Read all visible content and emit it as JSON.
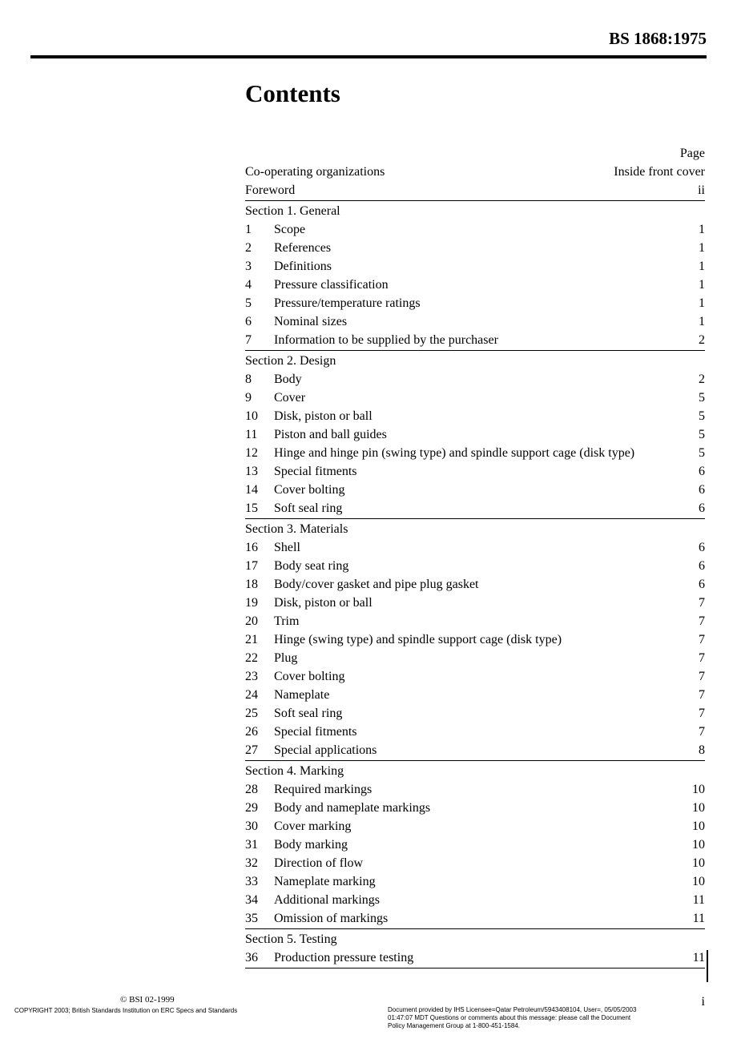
{
  "header": {
    "doc_id": "BS 1868:1975"
  },
  "title": "Contents",
  "page_label": "Page",
  "top_entries": [
    {
      "label": "Co-operating organizations",
      "page": "Inside front cover"
    },
    {
      "label": "Foreword",
      "page": "ii"
    }
  ],
  "sections": [
    {
      "heading": "Section 1. General",
      "items": [
        {
          "num": "1",
          "label": "Scope",
          "page": "1"
        },
        {
          "num": "2",
          "label": "References",
          "page": "1"
        },
        {
          "num": "3",
          "label": "Definitions",
          "page": "1"
        },
        {
          "num": "4",
          "label": "Pressure classification",
          "page": "1"
        },
        {
          "num": "5",
          "label": "Pressure/temperature ratings",
          "page": "1"
        },
        {
          "num": "6",
          "label": "Nominal sizes",
          "page": "1"
        },
        {
          "num": "7",
          "label": "Information to be supplied by the purchaser",
          "page": "2"
        }
      ]
    },
    {
      "heading": "Section 2. Design",
      "items": [
        {
          "num": "8",
          "label": "Body",
          "page": "2"
        },
        {
          "num": "9",
          "label": "Cover",
          "page": "5"
        },
        {
          "num": "10",
          "label": "Disk, piston or ball",
          "page": "5"
        },
        {
          "num": "11",
          "label": "Piston and ball guides",
          "page": "5"
        },
        {
          "num": "12",
          "label": "Hinge and hinge pin (swing type) and spindle support cage (disk type)",
          "page": "5"
        },
        {
          "num": "13",
          "label": "Special fitments",
          "page": "6"
        },
        {
          "num": "14",
          "label": "Cover bolting",
          "page": "6"
        },
        {
          "num": "15",
          "label": "Soft seal ring",
          "page": "6"
        }
      ]
    },
    {
      "heading": "Section 3. Materials",
      "items": [
        {
          "num": "16",
          "label": "Shell",
          "page": "6"
        },
        {
          "num": "17",
          "label": "Body seat ring",
          "page": "6"
        },
        {
          "num": "18",
          "label": "Body/cover gasket and pipe plug gasket",
          "page": "6"
        },
        {
          "num": "19",
          "label": "Disk, piston or ball",
          "page": "7"
        },
        {
          "num": "20",
          "label": "Trim",
          "page": "7"
        },
        {
          "num": "21",
          "label": "Hinge (swing type) and spindle support cage (disk type)",
          "page": "7"
        },
        {
          "num": "22",
          "label": "Plug",
          "page": "7"
        },
        {
          "num": "23",
          "label": "Cover bolting",
          "page": "7"
        },
        {
          "num": "24",
          "label": "Nameplate",
          "page": "7"
        },
        {
          "num": "25",
          "label": "Soft seal ring",
          "page": "7"
        },
        {
          "num": "26",
          "label": "Special fitments",
          "page": "7"
        },
        {
          "num": "27",
          "label": "Special applications",
          "page": "8"
        }
      ]
    },
    {
      "heading": "Section 4. Marking",
      "items": [
        {
          "num": "28",
          "label": "Required markings",
          "page": "10"
        },
        {
          "num": "29",
          "label": "Body and nameplate markings",
          "page": "10"
        },
        {
          "num": "30",
          "label": "Cover marking",
          "page": "10"
        },
        {
          "num": "31",
          "label": "Body marking",
          "page": "10"
        },
        {
          "num": "32",
          "label": "Direction of flow",
          "page": "10"
        },
        {
          "num": "33",
          "label": "Nameplate marking",
          "page": "10"
        },
        {
          "num": "34",
          "label": "Additional markings",
          "page": "11"
        },
        {
          "num": "35",
          "label": "Omission of markings",
          "page": "11"
        }
      ]
    },
    {
      "heading": "Section 5. Testing",
      "items": [
        {
          "num": "36",
          "label": "Production pressure testing",
          "page": "11"
        }
      ]
    }
  ],
  "footer": {
    "bsi": "© BSI 02-1999",
    "copyright": "COPYRIGHT 2003; British Standards Institution on ERC Specs and Standards",
    "provider_l1": "Document provided by IHS Licensee=Qatar Petroleum/5943408104, User=,  05/05/2003",
    "provider_l2": "01:47:07 MDT Questions or comments about this message: please call the Document",
    "provider_l3": "Policy Management Group at 1-800-451-1584.",
    "page_no": "i"
  }
}
